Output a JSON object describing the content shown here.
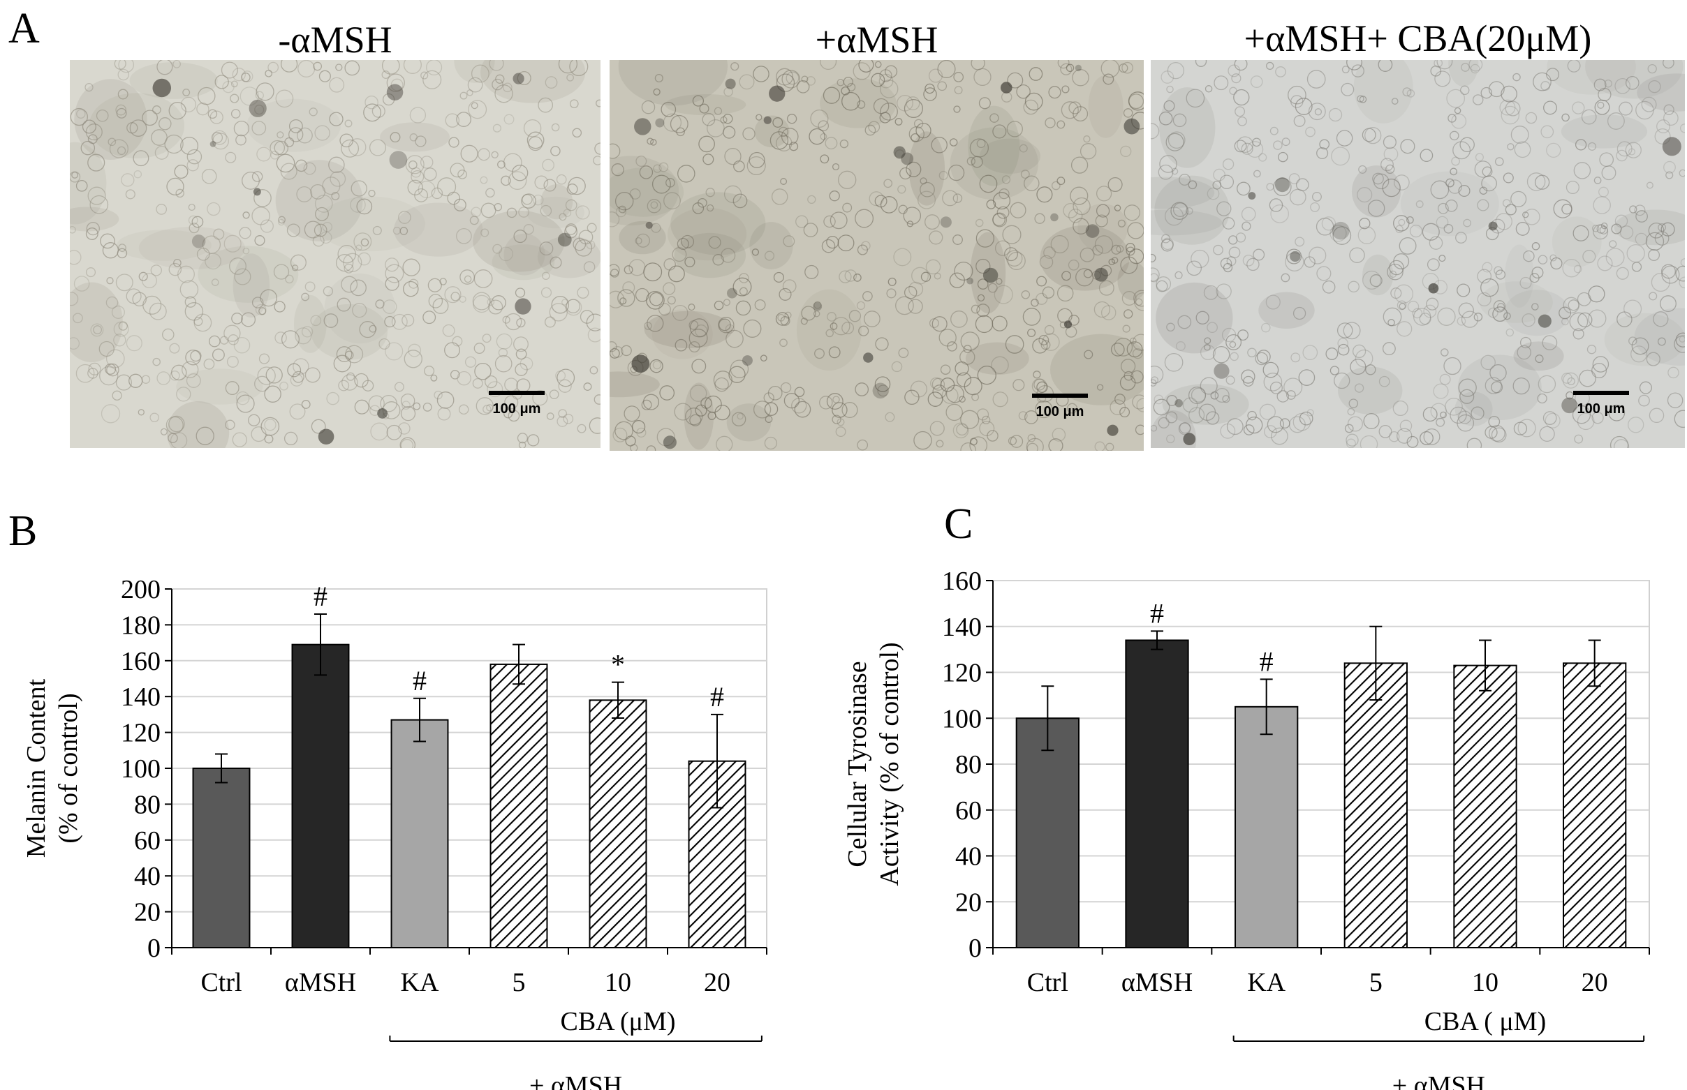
{
  "figure": {
    "panel_a": {
      "letter": "A",
      "images": [
        {
          "title": "-αMSH",
          "scale_bar": "100 μm",
          "tone": "#d9d8cf",
          "cell": "#8c877a"
        },
        {
          "title": "+αMSH",
          "scale_bar": "100 μm",
          "tone": "#c9c6b9",
          "cell": "#6f6a5c"
        },
        {
          "title": "+αMSH+ CBA(20μM)",
          "scale_bar": "100 μm",
          "tone": "#d4d5d2",
          "cell": "#7e7c76"
        }
      ]
    },
    "panel_b": {
      "letter": "B"
    },
    "panel_c": {
      "letter": "C"
    }
  },
  "chart_data": [
    {
      "type": "bar",
      "panel": "B",
      "ylabel_lines": [
        "Melanin Content",
        "(% of control)"
      ],
      "categories": [
        "Ctrl",
        "αMSH",
        "KA",
        "5",
        "10",
        "20"
      ],
      "values": [
        100,
        169,
        127,
        158,
        138,
        104
      ],
      "errors": [
        8,
        17,
        12,
        11,
        10,
        26
      ],
      "annotations": [
        "",
        "#",
        "#",
        "",
        "*",
        "#"
      ],
      "bar_styles": [
        "dark-gray",
        "black",
        "light-gray",
        "hatched",
        "hatched",
        "hatched"
      ],
      "bar_colors": [
        "#595959",
        "#262626",
        "#a6a6a6",
        "#ffffff",
        "#ffffff",
        "#ffffff"
      ],
      "ylim": [
        0,
        200
      ],
      "yticks": [
        0,
        20,
        40,
        60,
        80,
        100,
        120,
        140,
        160,
        180,
        200
      ],
      "grid": true,
      "group_label": "CBA (μM)",
      "bracket_label": "+ αMSH"
    },
    {
      "type": "bar",
      "panel": "C",
      "ylabel_lines": [
        "Cellular Tyrosinase",
        "Activity  (% of control)"
      ],
      "categories": [
        "Ctrl",
        "αMSH",
        "KA",
        "5",
        "10",
        "20"
      ],
      "values": [
        100,
        134,
        105,
        124,
        123,
        124
      ],
      "errors": [
        14,
        4,
        12,
        16,
        11,
        10
      ],
      "annotations": [
        "",
        "#",
        "#",
        "",
        "",
        ""
      ],
      "bar_styles": [
        "dark-gray",
        "black",
        "light-gray",
        "hatched",
        "hatched",
        "hatched"
      ],
      "bar_colors": [
        "#595959",
        "#262626",
        "#a6a6a6",
        "#ffffff",
        "#ffffff",
        "#ffffff"
      ],
      "ylim": [
        0,
        160
      ],
      "yticks": [
        0,
        20,
        40,
        60,
        80,
        100,
        120,
        140,
        160
      ],
      "grid": true,
      "group_label": "CBA ( μM)",
      "bracket_label": "+ αMSH"
    }
  ]
}
